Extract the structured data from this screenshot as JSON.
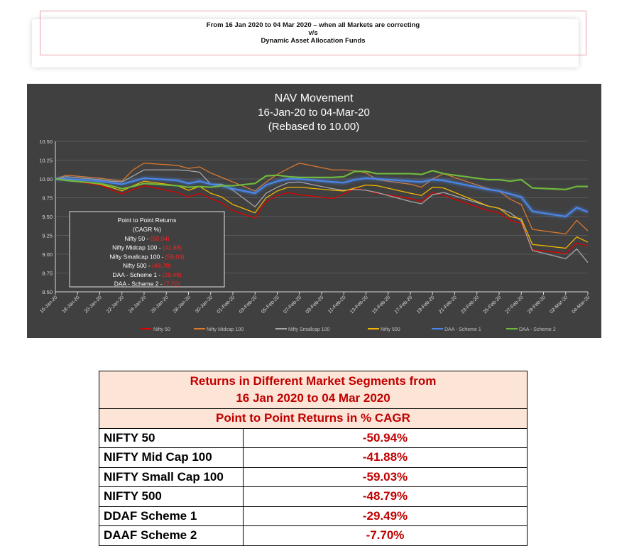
{
  "header": {
    "line1": "From 16 Jan 2020 to 04 Mar 2020 – when all Markets are correcting",
    "line2": "v/s",
    "line3": "Dynamic Asset Allocation Funds"
  },
  "chart_data": {
    "type": "line",
    "title": [
      "NAV Movement",
      "16-Jan-20 to 04-Mar-20",
      "(Rebased to 10.00)"
    ],
    "xlabel": "",
    "ylabel": "",
    "ylim": [
      8.5,
      10.5
    ],
    "yticks": [
      "8.50",
      "8.75",
      "9.00",
      "9.25",
      "9.50",
      "9.75",
      "10.00",
      "10.25",
      "10.50"
    ],
    "xlim": [
      "2020-01-16",
      "2020-03-04"
    ],
    "xticks": [
      "16-Jan-20",
      "18-Jan-20",
      "20-Jan-20",
      "22-Jan-20",
      "24-Jan-20",
      "26-Jan-20",
      "28-Jan-20",
      "30-Jan-20",
      "01-Feb-20",
      "03-Feb-20",
      "05-Feb-20",
      "07-Feb-20",
      "09-Feb-20",
      "11-Feb-20",
      "13-Feb-20",
      "15-Feb-20",
      "17-Feb-20",
      "19-Feb-20",
      "21-Feb-20",
      "23-Feb-20",
      "25-Feb-20",
      "27-Feb-20",
      "29-Feb-20",
      "02-Mar-20",
      "04-Mar-20"
    ],
    "grid": true,
    "legend_position": "bottom",
    "x": [
      "2020-01-16",
      "2020-01-17",
      "2020-01-20",
      "2020-01-21",
      "2020-01-22",
      "2020-01-23",
      "2020-01-24",
      "2020-01-27",
      "2020-01-28",
      "2020-01-29",
      "2020-01-30",
      "2020-01-31",
      "2020-02-01",
      "2020-02-03",
      "2020-02-04",
      "2020-02-05",
      "2020-02-06",
      "2020-02-07",
      "2020-02-10",
      "2020-02-11",
      "2020-02-12",
      "2020-02-13",
      "2020-02-14",
      "2020-02-17",
      "2020-02-18",
      "2020-02-19",
      "2020-02-20",
      "2020-02-24",
      "2020-02-25",
      "2020-02-26",
      "2020-02-27",
      "2020-02-28",
      "2020-03-02",
      "2020-03-03",
      "2020-03-04"
    ],
    "series": [
      {
        "name": "Nifty 50",
        "color": "#e00000",
        "values": [
          10.0,
          9.98,
          9.92,
          9.86,
          9.8,
          9.86,
          9.91,
          9.82,
          9.76,
          9.81,
          9.74,
          9.68,
          9.58,
          9.48,
          9.7,
          9.78,
          9.82,
          9.79,
          9.74,
          9.8,
          9.87,
          9.85,
          9.81,
          9.74,
          9.7,
          9.82,
          9.78,
          9.58,
          9.55,
          9.45,
          9.41,
          9.06,
          9.01,
          9.15,
          9.11
        ]
      },
      {
        "name": "Nifty Midcap 100",
        "color": "#d8772e",
        "values": [
          10.0,
          10.05,
          10.01,
          9.99,
          9.97,
          10.12,
          10.21,
          10.18,
          10.14,
          10.16,
          10.08,
          10.02,
          9.96,
          9.84,
          9.96,
          10.06,
          10.14,
          10.21,
          10.12,
          10.12,
          10.11,
          10.08,
          9.99,
          9.93,
          9.89,
          10.0,
          10.07,
          9.87,
          9.84,
          9.73,
          9.66,
          9.33,
          9.27,
          9.45,
          9.31
        ]
      },
      {
        "name": "Nifty Smallcap 100",
        "color": "#a6a6a6",
        "values": [
          10.0,
          10.03,
          9.99,
          9.97,
          9.96,
          10.04,
          10.12,
          10.12,
          10.11,
          10.09,
          9.93,
          9.93,
          9.85,
          9.63,
          9.81,
          9.89,
          9.95,
          9.96,
          9.87,
          9.85,
          9.86,
          9.85,
          9.82,
          9.7,
          9.67,
          9.79,
          9.82,
          9.64,
          9.61,
          9.55,
          9.44,
          9.05,
          8.94,
          9.07,
          8.89
        ]
      },
      {
        "name": "Nifty 500",
        "color": "#f2b600",
        "values": [
          10.0,
          9.99,
          9.93,
          9.89,
          9.84,
          9.91,
          9.97,
          9.91,
          9.85,
          9.9,
          9.81,
          9.76,
          9.66,
          9.55,
          9.75,
          9.84,
          9.89,
          9.89,
          9.85,
          9.84,
          9.88,
          9.92,
          9.91,
          9.81,
          9.78,
          9.89,
          9.88,
          9.64,
          9.61,
          9.5,
          9.47,
          9.13,
          9.08,
          9.23,
          9.16
        ]
      },
      {
        "name": "DAA - Scheme 1",
        "color": "#4a86e8",
        "values": [
          10.0,
          10.0,
          9.97,
          9.95,
          9.93,
          9.97,
          10.01,
          9.98,
          9.94,
          9.97,
          9.93,
          9.91,
          9.87,
          9.81,
          9.92,
          9.97,
          10.0,
          10.0,
          9.96,
          9.95,
          9.99,
          10.01,
          10.0,
          9.97,
          9.96,
          9.99,
          9.98,
          9.86,
          9.84,
          9.8,
          9.76,
          9.57,
          9.5,
          9.62,
          9.56
        ]
      },
      {
        "name": "DAA - Scheme 2",
        "color": "#70b83c",
        "values": [
          10.0,
          9.98,
          9.94,
          9.91,
          9.87,
          9.9,
          9.94,
          9.91,
          9.89,
          9.9,
          9.89,
          9.91,
          9.91,
          9.94,
          10.04,
          10.05,
          10.03,
          10.02,
          10.02,
          10.03,
          10.1,
          10.1,
          10.07,
          10.07,
          10.06,
          10.11,
          10.07,
          9.99,
          9.99,
          9.97,
          9.99,
          9.88,
          9.86,
          9.9,
          9.9
        ]
      }
    ],
    "annotation": {
      "title": "Point to Point Returns",
      "subtitle": "(CAGR %)",
      "items": [
        {
          "label": "Nifty 50 - ",
          "value": "(50.94)"
        },
        {
          "label": "Nifty Midcap 100 - ",
          "value": "(41.88)"
        },
        {
          "label": "Nifty Smallcap 100 - ",
          "value": "(59.03)"
        },
        {
          "label": "Nifty 500 - ",
          "value": "(48.79)"
        },
        {
          "label": "DAA - Scheme 1 - ",
          "value": "(29.49)"
        },
        {
          "label": "DAA - Scheme 2 - ",
          "value": "(7.70)"
        }
      ]
    }
  },
  "returns_table": {
    "title_line1": "Returns in Different Market Segments from",
    "title_line2": "16 Jan 2020 to 04 Mar 2020",
    "subtitle": "Point to Point Returns in % CAGR",
    "rows": [
      {
        "segment": "NIFTY 50",
        "return": "-50.94%"
      },
      {
        "segment": "NIFTY Mid Cap 100",
        "return": "-41.88%"
      },
      {
        "segment": "NIFTY Small Cap 100",
        "return": "-59.03%"
      },
      {
        "segment": "NIFTY 500",
        "return": "-48.79%"
      },
      {
        "segment": "DDAF Scheme 1",
        "return": "-29.49%"
      },
      {
        "segment": "DAAF Scheme 2",
        "return": "-7.70%"
      }
    ]
  }
}
